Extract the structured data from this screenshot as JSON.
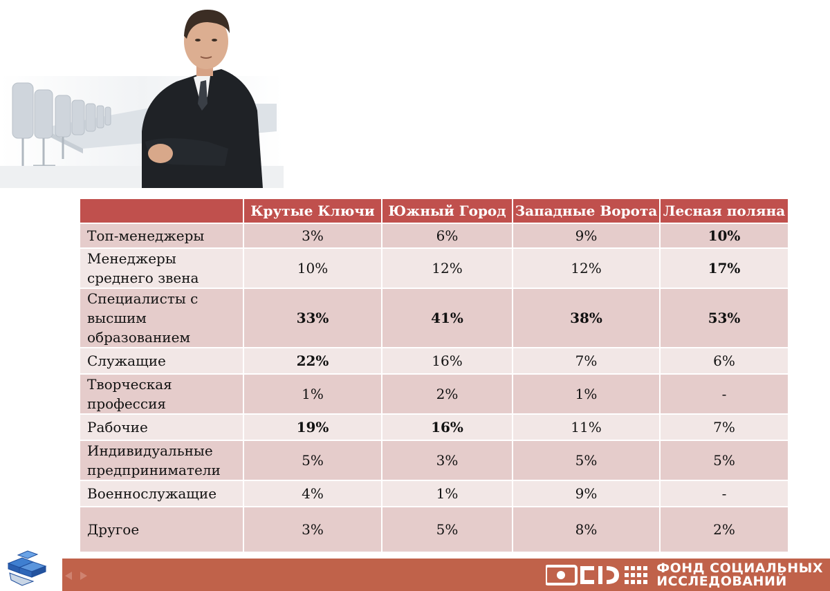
{
  "table": {
    "headers": [
      "",
      "Крутые Ключи",
      "Южный Город",
      "Западные Ворота",
      "Лесная поляна"
    ],
    "rows": [
      {
        "label": "Топ-менеджеры",
        "cells": [
          "3%",
          "6%",
          "9%",
          "10%"
        ],
        "bold": [
          false,
          false,
          false,
          true
        ]
      },
      {
        "label": "Менеджеры среднего звена",
        "cells": [
          "10%",
          "12%",
          "12%",
          "17%"
        ],
        "bold": [
          false,
          false,
          false,
          true
        ]
      },
      {
        "label": "Специалисты с высшим образованием",
        "cells": [
          "33%",
          "41%",
          "38%",
          "53%"
        ],
        "bold": [
          true,
          true,
          true,
          true
        ]
      },
      {
        "label": "Служащие",
        "cells": [
          "22%",
          "16%",
          "7%",
          "6%"
        ],
        "bold": [
          true,
          false,
          false,
          false
        ]
      },
      {
        "label": "Творческая профессия",
        "cells": [
          "1%",
          "2%",
          "1%",
          "-"
        ],
        "bold": [
          false,
          false,
          false,
          false
        ]
      },
      {
        "label": "Рабочие",
        "cells": [
          "19%",
          "16%",
          "11%",
          "7%"
        ],
        "bold": [
          true,
          true,
          false,
          false
        ]
      },
      {
        "label": "Индивидуальные предприниматели",
        "cells": [
          "5%",
          "3%",
          "5%",
          "5%"
        ],
        "bold": [
          false,
          false,
          false,
          false
        ]
      },
      {
        "label": "Военнослужащие",
        "cells": [
          "4%",
          "1%",
          "9%",
          "-"
        ],
        "bold": [
          false,
          false,
          false,
          false
        ]
      },
      {
        "label": "Другое",
        "cells": [
          "3%",
          "5%",
          "8%",
          "2%"
        ],
        "bold": [
          false,
          false,
          false,
          false
        ]
      }
    ]
  },
  "footer": {
    "logo_line1": "ФОНД СОЦИАЛЬНЫХ",
    "logo_line2": "ИССЛЕДОВАНИЙ"
  },
  "colors": {
    "header_bg": "#c0504d",
    "row_odd": "#e5cccb",
    "row_even": "#f2e7e6",
    "footer_bg": "#c0624a"
  },
  "icons": [
    "businessman-photo",
    "puzzle-icon",
    "nav-arrows-icon",
    "fond-logo-icon"
  ]
}
